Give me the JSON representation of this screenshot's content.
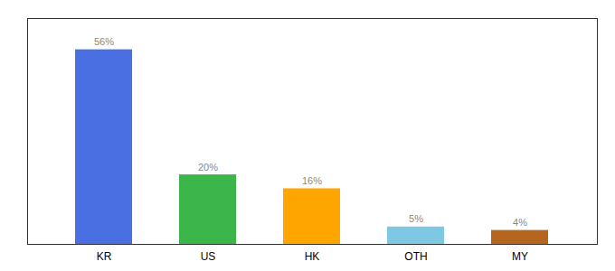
{
  "chart_data": {
    "type": "bar",
    "categories": [
      "KR",
      "US",
      "HK",
      "OTH",
      "MY"
    ],
    "values": [
      56,
      20,
      16,
      5,
      4
    ],
    "value_labels": [
      "56%",
      "20%",
      "16%",
      "5%",
      "4%"
    ],
    "colors": [
      "#4A6FE3",
      "#3CB54A",
      "#FFA500",
      "#7EC8E3",
      "#B5651D"
    ],
    "ylim": [
      0,
      65
    ],
    "data_labels": true,
    "tick_labels": "x",
    "grid": false
  }
}
